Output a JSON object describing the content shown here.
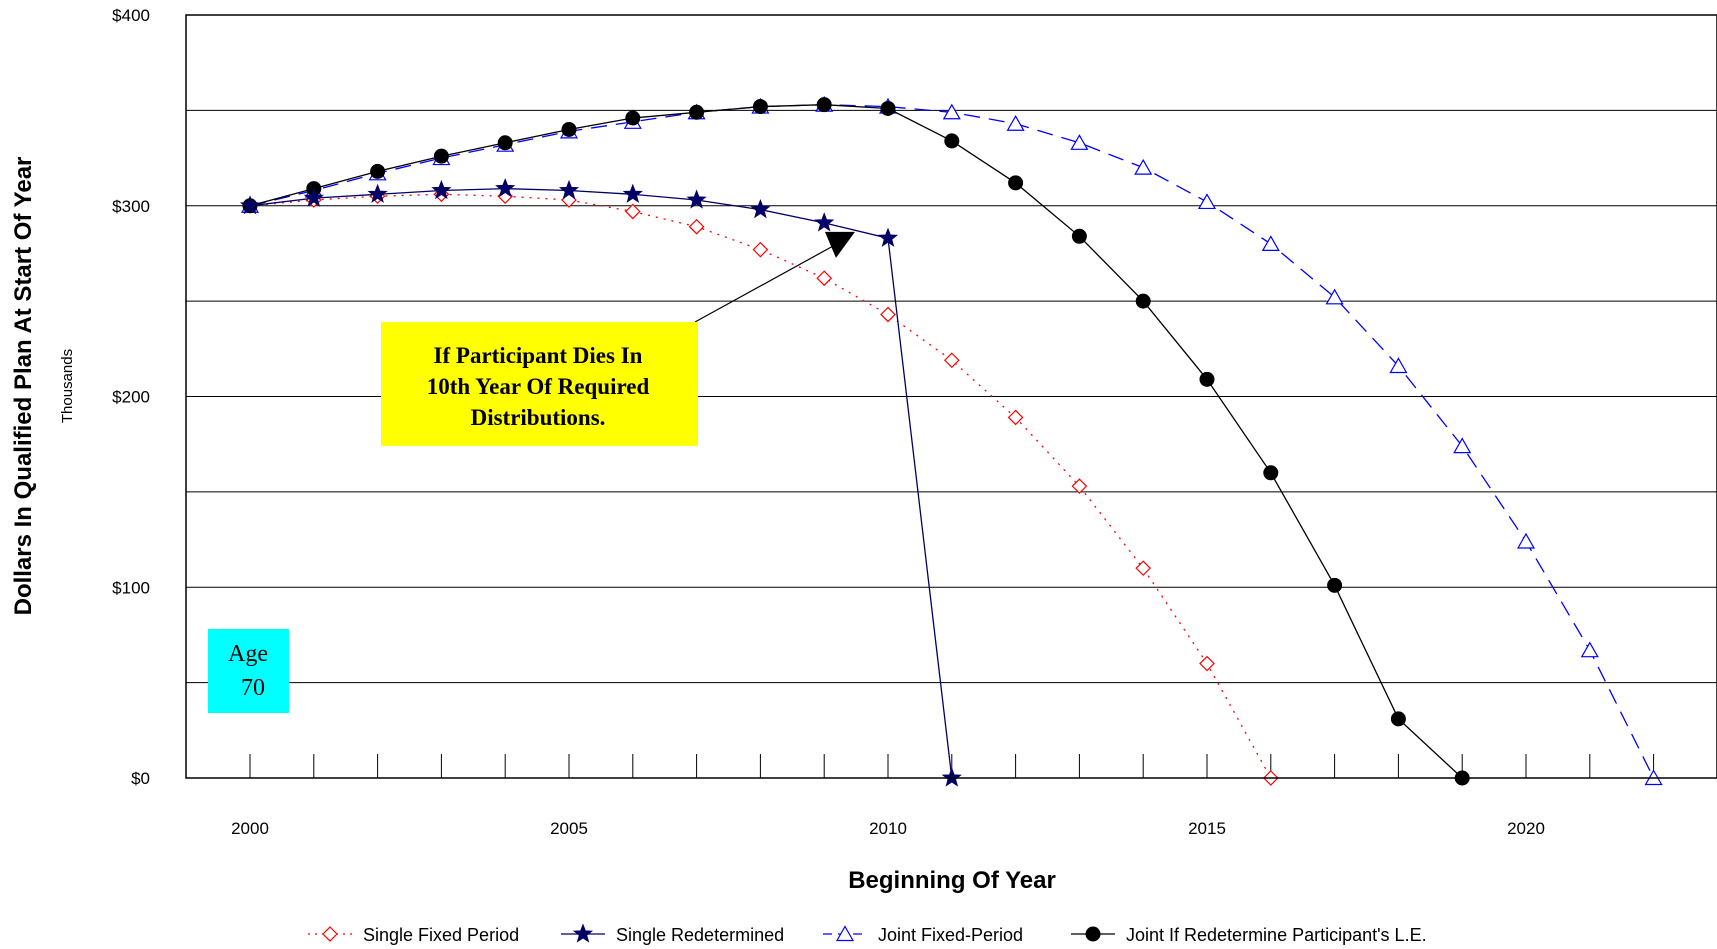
{
  "chart_data": {
    "type": "line",
    "title": "",
    "xlabel": "Beginning Of Year",
    "ylabel": "Dollars In Qualified Plan At Start Of Year",
    "yunit_label": "Thousands",
    "xlim": [
      2000,
      2023
    ],
    "ylim": [
      0,
      400
    ],
    "x_ticks": [
      2000,
      2005,
      2010,
      2015,
      2020
    ],
    "y_ticks": [
      0,
      100,
      200,
      300,
      400
    ],
    "y_tick_labels": [
      "$0",
      "$100",
      "$200",
      "$300",
      "$400"
    ],
    "y_gridlines": [
      50,
      100,
      150,
      200,
      250,
      300,
      350
    ],
    "grid": true,
    "legend_position": "bottom",
    "series": [
      {
        "name": "Single Fixed Period",
        "color": "#ff0000",
        "line_style": "dotted",
        "marker": "diamond",
        "x": [
          2000,
          2001,
          2002,
          2003,
          2004,
          2005,
          2006,
          2007,
          2008,
          2009,
          2010,
          2011,
          2012,
          2013,
          2014,
          2015,
          2016
        ],
        "values": [
          300,
          303,
          305,
          306,
          305,
          303,
          297,
          289,
          277,
          262,
          243,
          219,
          189,
          153,
          110,
          60,
          0
        ]
      },
      {
        "name": "Single Redetermined",
        "color": "#000066",
        "line_style": "solid",
        "marker": "star",
        "x": [
          2000,
          2001,
          2002,
          2003,
          2004,
          2005,
          2006,
          2007,
          2008,
          2009,
          2010,
          2011
        ],
        "values": [
          300,
          304,
          306,
          308,
          309,
          308,
          306,
          303,
          298,
          291,
          283,
          0
        ]
      },
      {
        "name": "Joint Fixed-Period",
        "color": "#0000ff",
        "line_style": "dashed",
        "marker": "triangle",
        "x": [
          2000,
          2001,
          2002,
          2003,
          2004,
          2005,
          2006,
          2007,
          2008,
          2009,
          2010,
          2011,
          2012,
          2013,
          2014,
          2015,
          2016,
          2017,
          2018,
          2019,
          2020,
          2021,
          2022
        ],
        "values": [
          300,
          308,
          317,
          325,
          332,
          339,
          344,
          349,
          352,
          353,
          352,
          349,
          343,
          333,
          320,
          302,
          280,
          252,
          216,
          174,
          124,
          67,
          0
        ]
      },
      {
        "name": "Joint If Redetermine Participant's L.E.",
        "color": "#000000",
        "line_style": "solid",
        "marker": "circle",
        "x": [
          2000,
          2001,
          2002,
          2003,
          2004,
          2005,
          2006,
          2007,
          2008,
          2009,
          2010,
          2011,
          2012,
          2013,
          2014,
          2015,
          2016,
          2017,
          2018,
          2019
        ],
        "values": [
          300,
          309,
          318,
          326,
          333,
          340,
          346,
          349,
          352,
          353,
          351,
          334,
          312,
          284,
          250,
          209,
          160,
          101,
          31,
          0
        ]
      }
    ],
    "annotations": [
      {
        "text_lines": [
          "If Participant Dies In",
          "10th Year Of Required",
          "Distributions."
        ],
        "background": "#ffff00",
        "arrow_target": {
          "x": 2009.2,
          "y": 280
        }
      },
      {
        "text_lines": [
          "Age",
          "70"
        ],
        "background": "#00ffff"
      }
    ]
  }
}
